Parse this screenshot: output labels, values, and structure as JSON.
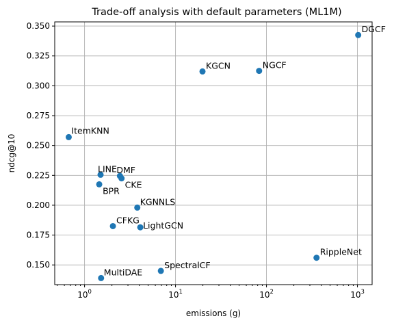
{
  "chart_data": {
    "type": "scatter",
    "title": "Trade-off analysis with default parameters (ML1M)",
    "xlabel": "emissions (g)",
    "ylabel": "ndcg@10",
    "xscale": "log",
    "xlim": [
      0.47,
      1450
    ],
    "ylim": [
      0.1335,
      0.3535
    ],
    "grid": true,
    "marker_color": "#1f77b4",
    "x_ticks": [
      {
        "value": 1,
        "base": "10",
        "exp": "0"
      },
      {
        "value": 10,
        "base": "10",
        "exp": "1"
      },
      {
        "value": 100,
        "base": "10",
        "exp": "2"
      },
      {
        "value": 1000,
        "base": "10",
        "exp": "3"
      }
    ],
    "y_ticks": [
      {
        "value": 0.15,
        "label": "0.150"
      },
      {
        "value": 0.175,
        "label": "0.175"
      },
      {
        "value": 0.2,
        "label": "0.200"
      },
      {
        "value": 0.225,
        "label": "0.225"
      },
      {
        "value": 0.25,
        "label": "0.250"
      },
      {
        "value": 0.275,
        "label": "0.275"
      },
      {
        "value": 0.3,
        "label": "0.300"
      },
      {
        "value": 0.325,
        "label": "0.325"
      },
      {
        "value": 0.35,
        "label": "0.350"
      }
    ],
    "points": [
      {
        "name": "DGCF",
        "x": 1020,
        "y": 0.3425
      },
      {
        "name": "KGCN",
        "x": 19.8,
        "y": 0.312
      },
      {
        "name": "NGCF",
        "x": 83,
        "y": 0.3125
      },
      {
        "name": "ItemKNN",
        "x": 0.67,
        "y": 0.257
      },
      {
        "name": "LINE",
        "x": 1.5,
        "y": 0.2255
      },
      {
        "name": "DMF",
        "x": 2.45,
        "y": 0.2245
      },
      {
        "name": "CKE",
        "x": 2.55,
        "y": 0.2225
      },
      {
        "name": "BPR",
        "x": 1.45,
        "y": 0.2175
      },
      {
        "name": "KGNNLS",
        "x": 3.8,
        "y": 0.198
      },
      {
        "name": "CFKG",
        "x": 2.05,
        "y": 0.1825
      },
      {
        "name": "LightGCN",
        "x": 4.1,
        "y": 0.1815
      },
      {
        "name": "RippleNet",
        "x": 355,
        "y": 0.156
      },
      {
        "name": "SpectralCF",
        "x": 6.9,
        "y": 0.145
      },
      {
        "name": "MultiDAE",
        "x": 1.52,
        "y": 0.139
      }
    ]
  }
}
